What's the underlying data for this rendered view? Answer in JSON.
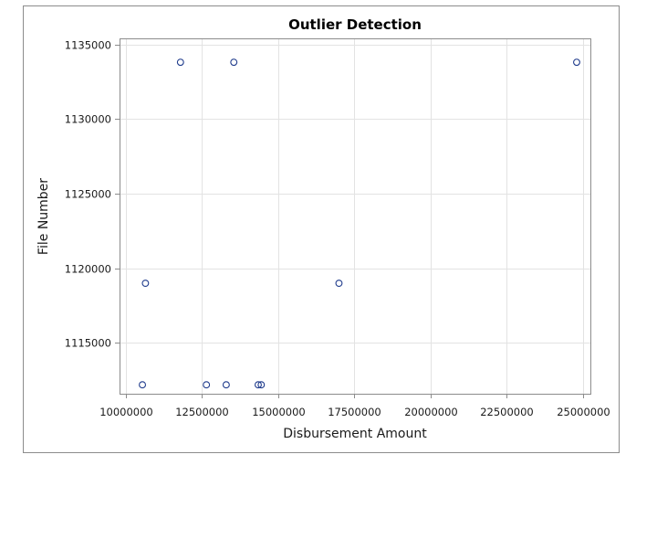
{
  "chart_data": {
    "type": "scatter",
    "title": "Outlier Detection",
    "xlabel": "Disbursement Amount",
    "ylabel": "File Number",
    "xlim": [
      9800000,
      25250000
    ],
    "ylim": [
      1111600,
      1135400
    ],
    "xticks": [
      10000000,
      12500000,
      15000000,
      17500000,
      20000000,
      22500000,
      25000000
    ],
    "yticks": [
      1115000,
      1120000,
      1125000,
      1130000,
      1135000
    ],
    "grid": true,
    "marker": "open-circle",
    "colors": {
      "marker": "#1f3b8c",
      "grid": "#e3e3e3",
      "frame": "#8c8c8c",
      "border": "#8c8c8c"
    },
    "points": [
      {
        "x": 11800000,
        "y": 1133800
      },
      {
        "x": 13550000,
        "y": 1133800
      },
      {
        "x": 24800000,
        "y": 1133800
      },
      {
        "x": 10650000,
        "y": 1119000
      },
      {
        "x": 17000000,
        "y": 1119000
      },
      {
        "x": 10550000,
        "y": 1112200
      },
      {
        "x": 12650000,
        "y": 1112200
      },
      {
        "x": 13300000,
        "y": 1112200
      },
      {
        "x": 14350000,
        "y": 1112200
      },
      {
        "x": 14450000,
        "y": 1112200
      }
    ]
  }
}
